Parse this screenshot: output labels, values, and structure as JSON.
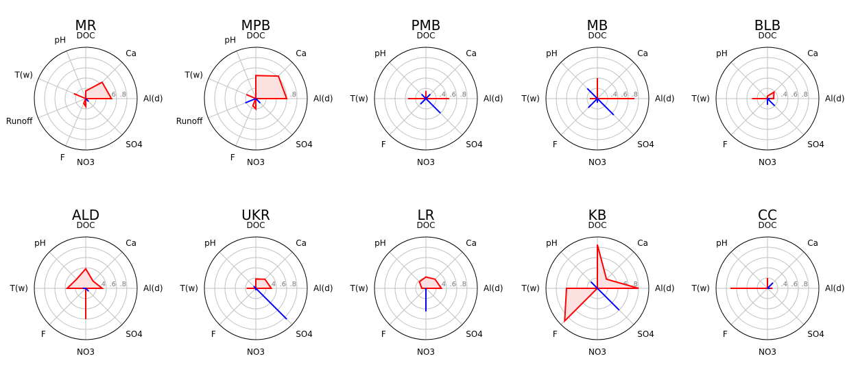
{
  "colors": {
    "red": "#ff0000",
    "red_fill": "#fde0e0",
    "blue": "#0000ff",
    "grid": "#c0c0c0"
  },
  "chart_data": [
    {
      "type": "radar",
      "title": "MR",
      "axes": [
        "Al(d)",
        "Ca",
        "DOC",
        "pH",
        "T(w)",
        "Runoff",
        "F",
        "NO3",
        "SO4"
      ],
      "angles_deg": [
        0,
        45,
        90,
        112,
        157,
        202,
        247,
        270,
        315
      ],
      "rmax": 1.0,
      "ring_values": [
        0.2,
        0.4,
        0.6,
        0.8
      ],
      "ring_labels": [
        "",
        ".4",
        ".6",
        ".8"
      ],
      "series": [
        {
          "color": "red",
          "filled": true,
          "values": [
            0.5,
            0.45,
            0.15,
            0.0,
            0.25,
            0.0,
            0.1,
            0.15,
            0.0
          ]
        },
        {
          "color": "red",
          "filled": false,
          "values": [
            0.5,
            0,
            0,
            0,
            0,
            0,
            0,
            0,
            0
          ]
        },
        {
          "color": "blue",
          "filled": false,
          "values": [
            0,
            0,
            0,
            0,
            0,
            0,
            0,
            0,
            0.08
          ]
        }
      ]
    },
    {
      "type": "radar",
      "title": "MPB",
      "axes": [
        "Al(d)",
        "Ca",
        "DOC",
        "pH",
        "T(w)",
        "Runoff",
        "F",
        "NO3",
        "SO4"
      ],
      "angles_deg": [
        0,
        45,
        90,
        112,
        157,
        202,
        247,
        270,
        315
      ],
      "rmax": 1.0,
      "ring_values": [
        0.2,
        0.4,
        0.6,
        0.8
      ],
      "ring_labels": [
        "",
        ".4",
        ".6",
        ".8"
      ],
      "series": [
        {
          "color": "red",
          "filled": true,
          "values": [
            0.6,
            0.62,
            0.45,
            0.0,
            0.2,
            0.0,
            0.15,
            0.2,
            0.0
          ]
        },
        {
          "color": "blue",
          "filled": false,
          "values": [
            0,
            0,
            0,
            0,
            0,
            0.22,
            0,
            0,
            0.12
          ]
        }
      ]
    },
    {
      "type": "radar",
      "title": "PMB",
      "axes": [
        "Al(d)",
        "Ca",
        "DOC",
        "pH",
        "T(w)",
        "F",
        "NO3",
        "SO4"
      ],
      "angles_deg": [
        0,
        45,
        90,
        135,
        180,
        225,
        270,
        315
      ],
      "rmax": 1.0,
      "ring_values": [
        0.2,
        0.4,
        0.6,
        0.8
      ],
      "ring_labels": [
        "",
        ".4",
        ".6",
        ".8"
      ],
      "series": [
        {
          "color": "red",
          "filled": false,
          "values": [
            0.45,
            0,
            0.15,
            0,
            0.35,
            0,
            0,
            0
          ]
        },
        {
          "color": "blue",
          "filled": false,
          "values": [
            0,
            0.12,
            0,
            0.12,
            0,
            0.15,
            0,
            0.4
          ]
        }
      ]
    },
    {
      "type": "radar",
      "title": "MB",
      "axes": [
        "Al(d)",
        "Ca",
        "DOC",
        "pH",
        "T(w)",
        "F",
        "NO3",
        "SO4"
      ],
      "angles_deg": [
        0,
        45,
        90,
        135,
        180,
        225,
        270,
        315
      ],
      "rmax": 1.0,
      "ring_values": [
        0.2,
        0.4,
        0.6,
        0.8
      ],
      "ring_labels": [
        "",
        ".4",
        ".6",
        ".8"
      ],
      "series": [
        {
          "color": "red",
          "filled": false,
          "values": [
            0.72,
            0,
            0.4,
            0,
            0.15,
            0,
            0,
            0
          ]
        },
        {
          "color": "blue",
          "filled": false,
          "values": [
            0,
            0,
            0,
            0.28,
            0,
            0.25,
            0.08,
            0.45
          ]
        }
      ]
    },
    {
      "type": "radar",
      "title": "BLB",
      "axes": [
        "Al(d)",
        "Ca",
        "DOC",
        "pH",
        "T(w)",
        "F",
        "NO3",
        "SO4"
      ],
      "angles_deg": [
        0,
        45,
        90,
        135,
        180,
        225,
        270,
        315
      ],
      "rmax": 1.0,
      "ring_values": [
        0.2,
        0.4,
        0.6,
        0.8
      ],
      "ring_labels": [
        "",
        ".4",
        ".6",
        ".8"
      ],
      "series": [
        {
          "color": "red",
          "filled": true,
          "values": [
            0.12,
            0.18,
            0.05,
            0.0,
            0.3,
            0.0,
            0.0,
            0.0
          ]
        },
        {
          "color": "blue",
          "filled": false,
          "values": [
            0.05,
            0,
            0,
            0,
            0,
            0,
            0.12,
            0.2
          ]
        }
      ]
    },
    {
      "type": "radar",
      "title": "ALD",
      "axes": [
        "Al(d)",
        "Ca",
        "DOC",
        "pH",
        "T(w)",
        "F",
        "NO3",
        "SO4"
      ],
      "angles_deg": [
        0,
        45,
        90,
        135,
        180,
        225,
        270,
        315
      ],
      "rmax": 1.0,
      "ring_values": [
        0.2,
        0.4,
        0.6,
        0.8
      ],
      "ring_labels": [
        "",
        ".4",
        ".6",
        ".8"
      ],
      "series": [
        {
          "color": "red",
          "filled": true,
          "values": [
            0.32,
            0.2,
            0.38,
            0.25,
            0.36,
            0.0,
            0.6,
            0.0
          ]
        },
        {
          "color": "blue",
          "filled": false,
          "values": [
            0,
            0,
            0,
            0,
            0.06,
            0,
            0,
            0.08
          ]
        }
      ]
    },
    {
      "type": "radar",
      "title": "UKR",
      "axes": [
        "Al(d)",
        "Ca",
        "DOC",
        "pH",
        "T(w)",
        "F",
        "NO3",
        "SO4"
      ],
      "angles_deg": [
        0,
        45,
        90,
        135,
        180,
        225,
        270,
        315
      ],
      "rmax": 1.0,
      "ring_values": [
        0.2,
        0.4,
        0.6,
        0.8
      ],
      "ring_labels": [
        "",
        ".4",
        ".6",
        ".8"
      ],
      "series": [
        {
          "color": "red",
          "filled": true,
          "values": [
            0.3,
            0.25,
            0.18,
            0.0,
            0.18,
            0.0,
            0.0,
            0.0
          ]
        },
        {
          "color": "blue",
          "filled": false,
          "values": [
            0,
            0,
            0,
            0.06,
            0,
            0,
            0.04,
            0.85
          ]
        }
      ]
    },
    {
      "type": "radar",
      "title": "LR",
      "axes": [
        "Al(d)",
        "Ca",
        "DOC",
        "pH",
        "T(w)",
        "F",
        "NO3",
        "SO4"
      ],
      "angles_deg": [
        0,
        45,
        90,
        135,
        180,
        225,
        270,
        315
      ],
      "rmax": 1.0,
      "ring_values": [
        0.2,
        0.4,
        0.6,
        0.8
      ],
      "ring_labels": [
        "",
        ".4",
        ".6",
        ".8"
      ],
      "series": [
        {
          "color": "red",
          "filled": true,
          "values": [
            0.3,
            0.25,
            0.22,
            0.18,
            0.08,
            0.0,
            0.05,
            0.0
          ]
        },
        {
          "color": "blue",
          "filled": false,
          "values": [
            0,
            0,
            0,
            0,
            0,
            0,
            0.45,
            0
          ]
        }
      ]
    },
    {
      "type": "radar",
      "title": "KB",
      "axes": [
        "Al(d)",
        "Ca",
        "DOC",
        "pH",
        "T(w)",
        "F",
        "NO3",
        "SO4"
      ],
      "angles_deg": [
        0,
        45,
        90,
        135,
        180,
        225,
        270,
        315
      ],
      "rmax": 1.0,
      "ring_values": [
        0.2,
        0.4,
        0.6,
        0.8
      ],
      "ring_labels": [
        "",
        ".4",
        ".6",
        ".8"
      ],
      "series": [
        {
          "color": "red",
          "filled": true,
          "values": [
            0.8,
            0.25,
            0.85,
            0.0,
            0.6,
            0.9,
            0.0,
            0.0
          ]
        },
        {
          "color": "blue",
          "filled": false,
          "values": [
            0,
            0,
            0,
            0.18,
            0,
            0,
            0,
            0.6
          ]
        }
      ]
    },
    {
      "type": "radar",
      "title": "CC",
      "axes": [
        "Al(d)",
        "Ca",
        "DOC",
        "pH",
        "T(w)",
        "F",
        "NO3",
        "SO4"
      ],
      "angles_deg": [
        0,
        45,
        90,
        135,
        180,
        225,
        270,
        315
      ],
      "rmax": 1.0,
      "ring_values": [
        0.2,
        0.4,
        0.6,
        0.8
      ],
      "ring_labels": [
        "",
        ".4",
        ".6",
        ".8"
      ],
      "series": [
        {
          "color": "red",
          "filled": false,
          "values": [
            0.1,
            0,
            0.2,
            0,
            0.72,
            0,
            0,
            0
          ]
        },
        {
          "color": "blue",
          "filled": false,
          "values": [
            0.05,
            0.15,
            0,
            0,
            0,
            0,
            0,
            0
          ]
        }
      ]
    }
  ]
}
